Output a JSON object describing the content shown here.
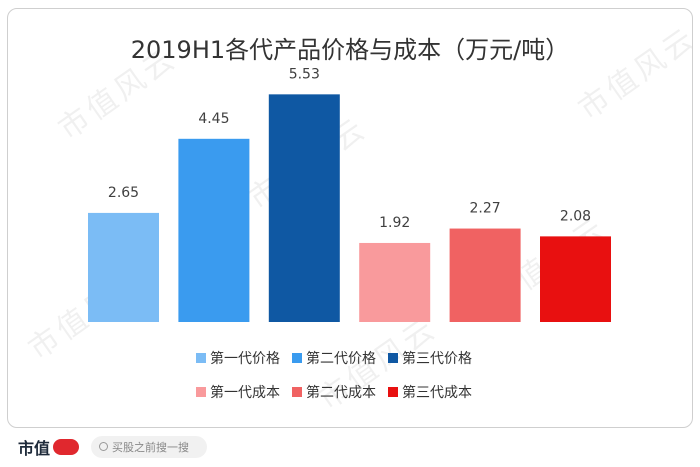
{
  "chart_data": {
    "type": "bar",
    "title": "2019H1各代产品价格与成本（万元/吨）",
    "categories": [
      "第一代价格",
      "第二代价格",
      "第三代价格",
      "第一代成本",
      "第二代成本",
      "第三代成本"
    ],
    "values": [
      2.65,
      4.45,
      5.53,
      1.92,
      2.27,
      2.08
    ],
    "value_labels": [
      "2.65",
      "4.45",
      "5.53",
      "1.92",
      "2.27",
      "2.08"
    ],
    "colors": [
      "#7bbcf5",
      "#3a9bef",
      "#0f58a3",
      "#f99a9c",
      "#f06262",
      "#e81010"
    ],
    "ylim": [
      0,
      6
    ],
    "xlabel": "",
    "ylabel": "",
    "grid": false,
    "legend_position": "bottom"
  },
  "watermark": "市值风云",
  "footer": {
    "logo_text": "市值",
    "search_placeholder": "买股之前搜一搜"
  }
}
